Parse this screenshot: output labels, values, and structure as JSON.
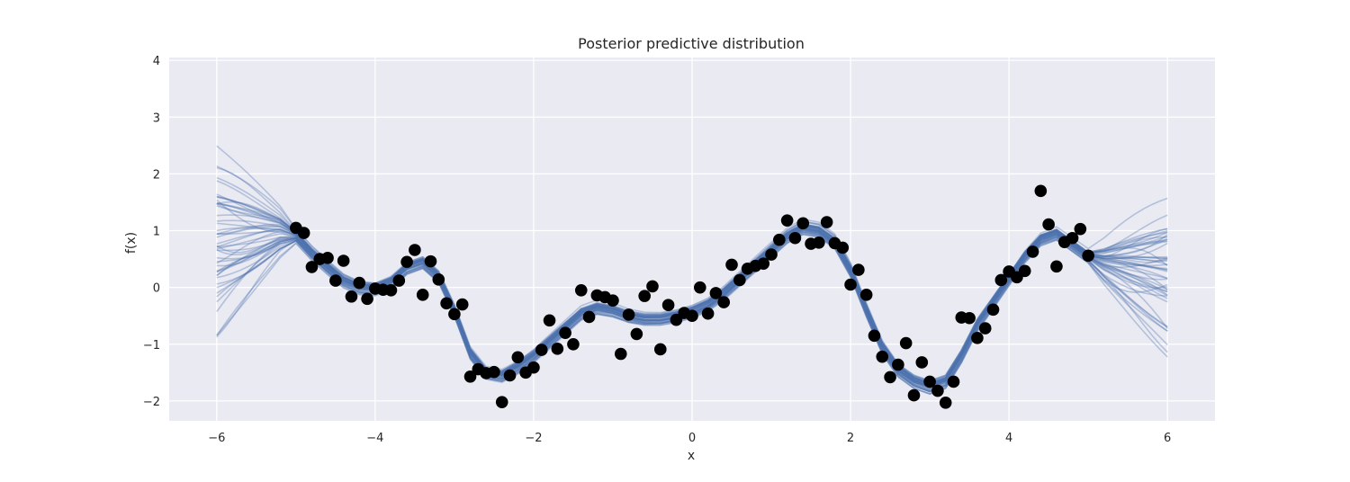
{
  "chart_data": {
    "type": "line",
    "title": "Posterior predictive distribution",
    "xlabel": "x",
    "ylabel": "f(x)",
    "xlim": [
      -6.6,
      6.6
    ],
    "ylim": [
      -2.35,
      4.05
    ],
    "xticks": [
      -6,
      -4,
      -2,
      0,
      2,
      4,
      6
    ],
    "yticks": [
      -2,
      -1,
      0,
      1,
      2,
      3,
      4
    ],
    "grid": true,
    "colors": {
      "background": "#EAEAF2",
      "grid": "#FFFFFF",
      "samples": "#4C72B0",
      "points": "#000000"
    },
    "posterior_sample_count": 50,
    "observations": {
      "x": [
        -5.0,
        -4.9,
        -4.8,
        -4.7,
        -4.6,
        -4.5,
        -4.4,
        -4.3,
        -4.2,
        -4.1,
        -4.0,
        -3.9,
        -3.8,
        -3.7,
        -3.6,
        -3.5,
        -3.4,
        -3.3,
        -3.2,
        -3.1,
        -3.0,
        -2.9,
        -2.8,
        -2.7,
        -2.6,
        -2.5,
        -2.4,
        -2.3,
        -2.2,
        -2.1,
        -2.0,
        -1.9,
        -1.8,
        -1.7,
        -1.6,
        -1.5,
        -1.4,
        -1.3,
        -1.2,
        -1.1,
        -1.0,
        -0.9,
        -0.8,
        -0.7,
        -0.6,
        -0.5,
        -0.4,
        -0.3,
        -0.2,
        -0.1,
        0.0,
        0.1,
        0.2,
        0.3,
        0.4,
        0.5,
        0.6,
        0.7,
        0.8,
        0.9,
        1.0,
        1.1,
        1.2,
        1.3,
        1.4,
        1.5,
        1.6,
        1.7,
        1.8,
        1.9,
        2.0,
        2.1,
        2.2,
        2.3,
        2.4,
        2.5,
        2.6,
        2.7,
        2.8,
        2.9,
        3.0,
        3.1,
        3.2,
        3.3,
        3.4,
        3.5,
        3.6,
        3.7,
        3.8,
        3.9,
        4.0,
        4.1,
        4.2,
        4.3,
        4.4,
        4.5,
        4.6,
        4.7,
        4.8,
        4.9,
        5.0
      ],
      "y": [
        1.05,
        0.96,
        0.36,
        0.5,
        0.52,
        0.12,
        0.47,
        -0.16,
        0.08,
        -0.2,
        -0.02,
        -0.04,
        -0.05,
        0.12,
        0.45,
        0.66,
        -0.13,
        0.46,
        0.14,
        -0.28,
        -0.47,
        -0.3,
        -1.57,
        -1.44,
        -1.51,
        -1.49,
        -2.02,
        -1.55,
        -1.23,
        -1.5,
        -1.41,
        -1.1,
        -0.58,
        -1.08,
        -0.8,
        -1.0,
        -0.05,
        -0.52,
        -0.14,
        -0.17,
        -0.23,
        -1.17,
        -0.48,
        -0.82,
        -0.15,
        0.02,
        -1.09,
        -0.31,
        -0.57,
        -0.45,
        -0.5,
        0.0,
        -0.46,
        -0.1,
        -0.26,
        0.4,
        0.13,
        0.33,
        0.38,
        0.42,
        0.58,
        0.84,
        1.18,
        0.87,
        1.13,
        0.77,
        0.79,
        1.15,
        0.78,
        0.7,
        0.05,
        0.31,
        -0.13,
        -0.85,
        -1.22,
        -1.58,
        -1.36,
        -0.98,
        -1.9,
        -1.32,
        -1.66,
        -1.82,
        -2.03,
        -1.66,
        -0.53,
        -0.54,
        -0.89,
        -0.72,
        -0.39,
        0.13,
        0.28,
        0.18,
        0.29,
        0.63,
        1.7,
        1.11,
        0.37,
        0.8,
        0.87,
        1.03,
        0.56
      ]
    },
    "posterior_mean": {
      "x": [
        -6.0,
        -5.8,
        -5.6,
        -5.4,
        -5.2,
        -5.0,
        -4.8,
        -4.6,
        -4.4,
        -4.2,
        -4.0,
        -3.8,
        -3.6,
        -3.4,
        -3.2,
        -3.0,
        -2.8,
        -2.6,
        -2.4,
        -2.2,
        -2.0,
        -1.8,
        -1.6,
        -1.4,
        -1.2,
        -1.0,
        -0.8,
        -0.6,
        -0.4,
        -0.2,
        0.0,
        0.2,
        0.4,
        0.6,
        0.8,
        1.0,
        1.2,
        1.4,
        1.6,
        1.8,
        2.0,
        2.2,
        2.4,
        2.6,
        2.8,
        3.0,
        3.2,
        3.4,
        3.6,
        3.8,
        4.0,
        4.2,
        4.4,
        4.6,
        4.8,
        5.0,
        5.2,
        5.4,
        5.6,
        5.8,
        6.0
      ],
      "y": [
        0.75,
        0.8,
        0.85,
        0.9,
        0.95,
        0.9,
        0.6,
        0.35,
        0.12,
        0.0,
        -0.02,
        0.1,
        0.35,
        0.45,
        0.2,
        -0.4,
        -1.15,
        -1.5,
        -1.55,
        -1.4,
        -1.2,
        -0.95,
        -0.7,
        -0.45,
        -0.35,
        -0.4,
        -0.5,
        -0.55,
        -0.55,
        -0.5,
        -0.42,
        -0.3,
        -0.1,
        0.15,
        0.4,
        0.65,
        0.9,
        1.05,
        1.0,
        0.8,
        0.3,
        -0.4,
        -1.05,
        -1.45,
        -1.65,
        -1.75,
        -1.65,
        -1.2,
        -0.65,
        -0.25,
        0.15,
        0.55,
        0.85,
        0.95,
        0.75,
        0.55,
        0.45,
        0.4,
        0.35,
        0.3,
        0.25
      ]
    }
  }
}
